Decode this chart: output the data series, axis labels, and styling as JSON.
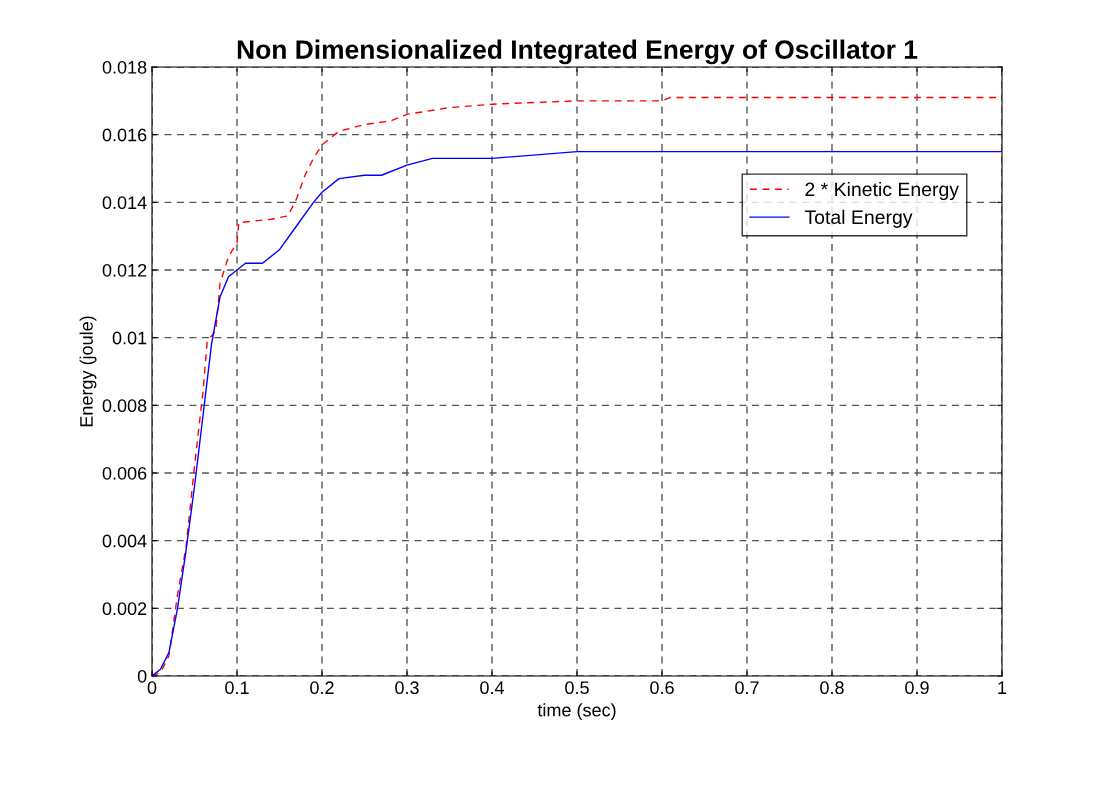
{
  "chart_data": {
    "type": "line",
    "title": "Non Dimensionalized Integrated Energy of Oscillator 1",
    "xlabel": "time (sec)",
    "ylabel": "Energy (joule)",
    "xlim": [
      0,
      1
    ],
    "xticks": [
      0,
      0.1,
      0.2,
      0.3,
      0.4,
      0.5,
      0.6,
      0.7,
      0.8,
      0.9,
      1
    ],
    "ylim": [
      0,
      0.018
    ],
    "yticks": [
      0,
      0.002,
      0.004,
      0.006,
      0.008,
      0.01,
      0.012,
      0.014,
      0.016,
      0.018
    ],
    "grid": true,
    "legend": "top right",
    "marker": "none",
    "series": [
      {
        "name": "2 * Kinetic Energy",
        "color": "#ff0000",
        "line_style": "dashed",
        "x": [
          0,
          0.01,
          0.02,
          0.03,
          0.04,
          0.05,
          0.06,
          0.065,
          0.075,
          0.08,
          0.09,
          0.1,
          0.102,
          0.14,
          0.16,
          0.17,
          0.18,
          0.19,
          0.2,
          0.22,
          0.25,
          0.28,
          0.3,
          0.35,
          0.4,
          0.5,
          0.6,
          0.61,
          1.0
        ],
        "values": [
          0,
          0.0001,
          0.0006,
          0.0024,
          0.0038,
          0.0062,
          0.0084,
          0.0099,
          0.0102,
          0.0116,
          0.0124,
          0.0128,
          0.0134,
          0.0135,
          0.0136,
          0.0141,
          0.0148,
          0.0153,
          0.0157,
          0.0161,
          0.0163,
          0.0164,
          0.0166,
          0.0168,
          0.0169,
          0.017,
          0.017,
          0.0171,
          0.0171
        ]
      },
      {
        "name": "Total Energy",
        "color": "#0000ff",
        "line_style": "solid",
        "x": [
          0,
          0.01,
          0.02,
          0.03,
          0.04,
          0.05,
          0.06,
          0.07,
          0.08,
          0.09,
          0.1,
          0.11,
          0.13,
          0.15,
          0.17,
          0.19,
          0.2,
          0.22,
          0.25,
          0.27,
          0.3,
          0.33,
          0.4,
          0.5,
          1.0
        ],
        "values": [
          0,
          0.0002,
          0.0007,
          0.002,
          0.0037,
          0.0056,
          0.0077,
          0.0098,
          0.0112,
          0.0118,
          0.012,
          0.0122,
          0.0122,
          0.0126,
          0.0133,
          0.014,
          0.0143,
          0.0147,
          0.0148,
          0.0148,
          0.0151,
          0.0153,
          0.0153,
          0.0155,
          0.0155
        ]
      }
    ]
  }
}
